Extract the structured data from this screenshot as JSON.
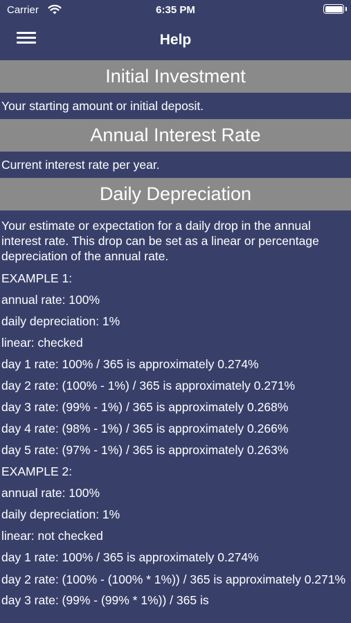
{
  "status_bar": {
    "carrier": "Carrier",
    "time": "6:35 PM"
  },
  "nav": {
    "title": "Help",
    "menu_icon": "hamburger-menu-icon"
  },
  "sections": [
    {
      "header": "Initial Investment",
      "description": "Your starting amount or initial deposit."
    },
    {
      "header": "Annual Interest Rate",
      "description": "Current interest rate per year."
    },
    {
      "header": "Daily Depreciation",
      "description": "Your estimate or expectation for a daily drop in the annual interest rate. This drop can be set as a linear or percentage depreciation of the annual rate."
    }
  ],
  "examples": [
    "EXAMPLE 1:",
    "annual rate: 100%",
    "daily depreciation: 1%",
    "linear: checked",
    "day 1 rate: 100% / 365 is approximately 0.274%",
    "day 2 rate: (100% - 1%) / 365 is approximately 0.271%",
    "day 3 rate: (99% - 1%) / 365 is approximately 0.268%",
    "day 4 rate: (98% - 1%) / 365 is approximately 0.266%",
    "day 5 rate: (97% - 1%) / 365 is approximately 0.263%",
    "EXAMPLE 2:",
    "annual rate: 100%",
    "daily depreciation: 1%",
    "linear: not checked",
    "day 1 rate: 100% / 365 is approximately 0.274%",
    "day 2 rate: (100% - (100% * 1%)) / 365 is approximately 0.271%",
    "day 3 rate: (99% - (99% * 1%)) / 365 is"
  ],
  "colors": {
    "background": "#38406a",
    "section_header": "#8a8a8a",
    "text": "#ffffff"
  }
}
